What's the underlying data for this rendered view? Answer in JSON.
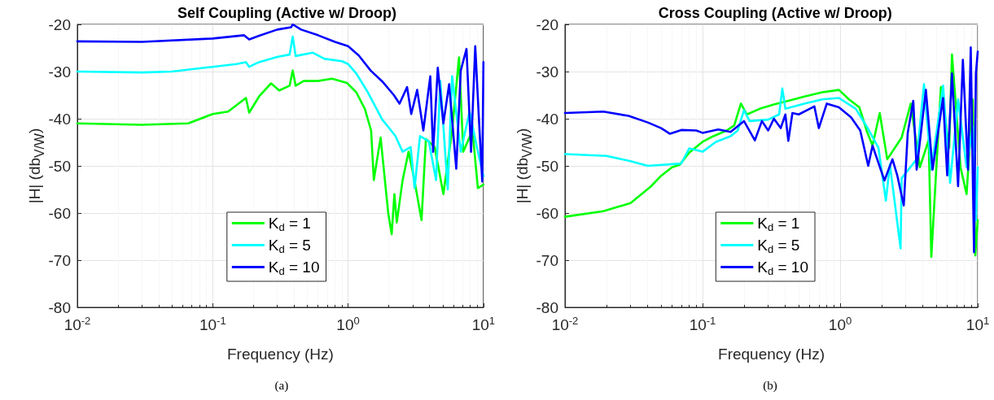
{
  "chart_data": [
    {
      "type": "line",
      "title": "Self Coupling (Active w/ Droop)",
      "xlabel": "Frequency (Hz)",
      "ylabel": "|H| (db$_{V/W}$)",
      "log": "x",
      "grid": true,
      "legend": "bottom right",
      "marker": "none",
      "line_style": "solid",
      "xlim": [
        0.01,
        10
      ],
      "xticks": [
        {
          "value": 0.01,
          "label": "10$^{-2}$"
        },
        {
          "value": 0.1,
          "label": "10$^{-1}$"
        },
        {
          "value": 1,
          "label": "10$^{0}$"
        },
        {
          "value": 10,
          "label": "10$^{1}$"
        }
      ],
      "ylim": [
        -80,
        -20
      ],
      "yticks": [
        -80,
        -70,
        -60,
        -50,
        -40,
        -30,
        -20
      ],
      "annotations": [
        "(a)"
      ],
      "series": [
        {
          "name": "K$_{d}$ = 1",
          "color": "#00ff00",
          "x": [
            0.01,
            0.03,
            0.066,
            0.1,
            0.13,
            0.176,
            0.186,
            0.22,
            0.27,
            0.31,
            0.37,
            0.39,
            0.41,
            0.47,
            0.6,
            0.76,
            0.98,
            1.15,
            1.33,
            1.48,
            1.55,
            1.74,
            1.98,
            2.1,
            2.2,
            2.29,
            2.53,
            2.8,
            3.09,
            3.49,
            3.76,
            4.36,
            5.06,
            5.87,
            6.6,
            7.1,
            8.3,
            9.1,
            10
          ],
          "values": [
            -41,
            -41.3,
            -41,
            -39,
            -38.5,
            -35.6,
            -38.7,
            -35.3,
            -32.5,
            -34,
            -33,
            -29.8,
            -33,
            -32,
            -32,
            -31.5,
            -32.4,
            -34.4,
            -37.9,
            -42.5,
            -53,
            -44,
            -60,
            -64.5,
            -56,
            -62,
            -53,
            -47,
            -53,
            -61.5,
            -44.3,
            -46,
            -56,
            -42.5,
            -27,
            -47,
            -42.5,
            -54.7,
            -54
          ]
        },
        {
          "name": "K$_{d}$ = 5",
          "color": "#00ffff",
          "x": [
            0.01,
            0.03,
            0.05,
            0.1,
            0.15,
            0.176,
            0.186,
            0.22,
            0.3,
            0.37,
            0.39,
            0.41,
            0.55,
            0.67,
            0.9,
            1.0,
            1.15,
            1.4,
            1.79,
            2.08,
            2.24,
            2.53,
            2.9,
            3.1,
            3.4,
            3.95,
            4.47,
            4.8,
            5.45,
            5.87,
            6.8,
            7.9,
            9.1,
            10
          ],
          "values": [
            -30,
            -30.2,
            -30,
            -29,
            -28.4,
            -28,
            -29,
            -28,
            -26.9,
            -26.4,
            -22.6,
            -26.7,
            -26,
            -27.3,
            -27.8,
            -28.4,
            -30.4,
            -34.4,
            -40.2,
            -42.5,
            -43.7,
            -47,
            -46,
            -54.7,
            -43.7,
            -44.8,
            -53,
            -32,
            -55,
            -31,
            -47,
            -38.5,
            -47,
            -52.2
          ]
        },
        {
          "name": "K$_{d}$ = 10",
          "color": "#0000ff",
          "x": [
            0.01,
            0.03,
            0.1,
            0.17,
            0.186,
            0.22,
            0.3,
            0.38,
            0.39,
            0.45,
            0.6,
            0.8,
            1.0,
            1.2,
            1.47,
            1.79,
            2.18,
            2.4,
            2.73,
            2.93,
            3.24,
            3.6,
            4.05,
            4.25,
            4.6,
            5.06,
            5.58,
            6.3,
            6.8,
            7.5,
            8.1,
            8.7,
            9.3,
            9.8,
            10
          ],
          "values": [
            -23.6,
            -23.7,
            -23,
            -22.3,
            -23.2,
            -22.4,
            -21.1,
            -20.6,
            -20,
            -21.1,
            -22.3,
            -23.7,
            -24.6,
            -26.6,
            -29.8,
            -32.1,
            -35,
            -36.8,
            -33.3,
            -39,
            -33.9,
            -42.5,
            -31,
            -47,
            -29.2,
            -41,
            -32.7,
            -50.6,
            -29.8,
            -25.2,
            -47,
            -24.6,
            -41,
            -53.3,
            -28
          ]
        }
      ]
    },
    {
      "type": "line",
      "title": "Cross Coupling (Active w/ Droop)",
      "xlabel": "Frequency (Hz)",
      "ylabel": "|H| (db$_{V/W}$)",
      "log": "x",
      "grid": true,
      "legend": "bottom right",
      "marker": "none",
      "line_style": "solid",
      "xlim": [
        0.01,
        10
      ],
      "xticks": [
        {
          "value": 0.01,
          "label": "10$^{-2}$"
        },
        {
          "value": 0.1,
          "label": "10$^{-1}$"
        },
        {
          "value": 1,
          "label": "10$^{0}$"
        },
        {
          "value": 10,
          "label": "10$^{1}$"
        }
      ],
      "ylim": [
        -80,
        -20
      ],
      "yticks": [
        -80,
        -70,
        -60,
        -50,
        -40,
        -30,
        -20
      ],
      "annotations": [
        "(b)"
      ],
      "series": [
        {
          "name": "K$_{d}$ = 1",
          "color": "#00ff00",
          "x": [
            0.01,
            0.019,
            0.03,
            0.042,
            0.05,
            0.06,
            0.068,
            0.08,
            0.1,
            0.12,
            0.15,
            0.17,
            0.19,
            0.21,
            0.26,
            0.33,
            0.42,
            0.55,
            0.74,
            0.98,
            1.16,
            1.38,
            1.57,
            1.72,
            1.94,
            2.2,
            2.8,
            3.26,
            3.8,
            4.4,
            4.6,
            5.4,
            6.2,
            6.5,
            7.5,
            8.3,
            9.2,
            9.6,
            10
          ],
          "values": [
            -60.8,
            -59.6,
            -57.9,
            -54.4,
            -52.1,
            -50.3,
            -49.8,
            -47.2,
            -44.9,
            -43.7,
            -42.5,
            -41.4,
            -36.8,
            -39.1,
            -37.9,
            -37,
            -36.2,
            -35.3,
            -34.4,
            -33.9,
            -35.9,
            -37.6,
            -42.8,
            -45.7,
            -38.8,
            -48.6,
            -44,
            -36.8,
            -50.3,
            -44.5,
            -69.3,
            -33.3,
            -46.2,
            -26.4,
            -50.3,
            -56,
            -35.9,
            -69,
            -61.5
          ]
        },
        {
          "name": "K$_{d}$ = 5",
          "color": "#00ffff",
          "x": [
            0.01,
            0.02,
            0.03,
            0.04,
            0.07,
            0.08,
            0.1,
            0.125,
            0.16,
            0.18,
            0.2,
            0.22,
            0.3,
            0.36,
            0.38,
            0.4,
            0.55,
            0.74,
            0.98,
            1.3,
            1.6,
            1.9,
            2.15,
            2.3,
            2.75,
            2.8,
            3.6,
            4.07,
            4.6,
            5.6,
            6.3,
            7.2,
            8.3,
            9.2,
            9.7,
            10
          ],
          "values": [
            -47.5,
            -47.9,
            -49,
            -50,
            -49.5,
            -46.3,
            -47,
            -44.9,
            -43.7,
            -42.5,
            -38.2,
            -40.5,
            -40.2,
            -39.1,
            -33.6,
            -37.9,
            -36.8,
            -35.9,
            -35.6,
            -37.9,
            -42.2,
            -46.2,
            -57.4,
            -49.7,
            -67.5,
            -52.6,
            -48.6,
            -32.7,
            -50.8,
            -33,
            -53.6,
            -35.9,
            -50.3,
            -41.6,
            -61.5,
            -50.3
          ]
        },
        {
          "name": "K$_{d}$ = 10",
          "color": "#0000ff",
          "x": [
            0.01,
            0.019,
            0.029,
            0.04,
            0.05,
            0.058,
            0.07,
            0.09,
            0.1,
            0.13,
            0.16,
            0.2,
            0.24,
            0.27,
            0.3,
            0.33,
            0.37,
            0.4,
            0.42,
            0.45,
            0.5,
            0.65,
            0.7,
            0.8,
            0.98,
            1.2,
            1.4,
            1.6,
            1.72,
            2.1,
            2.4,
            2.6,
            2.9,
            3.1,
            3.4,
            3.6,
            4.2,
            4.7,
            5.6,
            6.0,
            6.5,
            7.2,
            7.8,
            8.5,
            8.9,
            9.4,
            9.7,
            10
          ],
          "values": [
            -38.8,
            -38.5,
            -39.4,
            -40.8,
            -42,
            -43.2,
            -42.4,
            -42.5,
            -43,
            -42.3,
            -42.8,
            -40.5,
            -44.6,
            -40.5,
            -42.5,
            -40,
            -42,
            -39.1,
            -44.7,
            -38.8,
            -39.1,
            -37.4,
            -42,
            -36.8,
            -37.6,
            -39.7,
            -42.5,
            -50,
            -45.7,
            -53.1,
            -48.6,
            -52,
            -58.4,
            -43,
            -36.2,
            -50.8,
            -33.9,
            -50.8,
            -35.6,
            -52,
            -30.4,
            -54.3,
            -27.5,
            -50.8,
            -24.9,
            -68.3,
            -30.4,
            -25.8
          ]
        }
      ]
    }
  ]
}
